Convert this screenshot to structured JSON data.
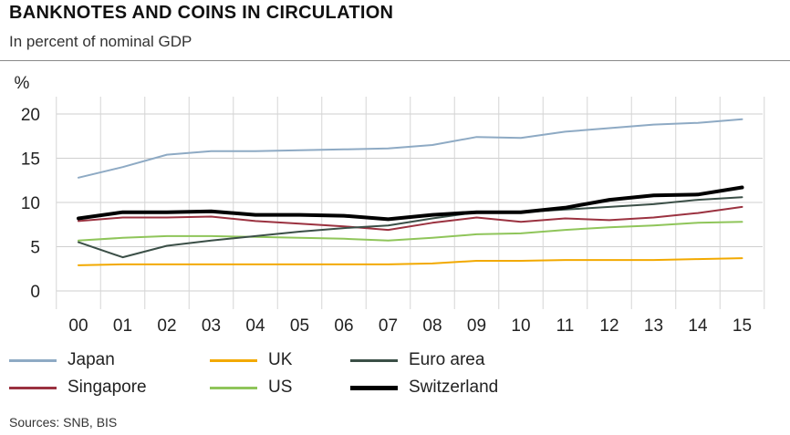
{
  "title": "BANKNOTES AND COINS IN CIRCULATION",
  "subtitle": "In percent of nominal GDP",
  "source": "Sources: SNB, BIS",
  "chart_data": {
    "type": "line",
    "ylabel": "%",
    "x": [
      "00",
      "01",
      "02",
      "03",
      "04",
      "05",
      "06",
      "07",
      "08",
      "09",
      "10",
      "11",
      "12",
      "13",
      "14",
      "15"
    ],
    "ylim": [
      0,
      20
    ],
    "yticks": [
      0,
      5,
      10,
      15,
      20
    ],
    "grid": true,
    "legend_position": "bottom",
    "series": [
      {
        "name": "Japan",
        "color": "#8eaac4",
        "width": 2,
        "values": [
          12.8,
          14.0,
          15.4,
          15.8,
          15.8,
          15.9,
          16.0,
          16.1,
          16.5,
          17.4,
          17.3,
          18.0,
          18.4,
          18.8,
          19.0,
          19.4
        ]
      },
      {
        "name": "Singapore",
        "color": "#9b3240",
        "width": 2,
        "values": [
          7.9,
          8.3,
          8.3,
          8.4,
          7.9,
          7.6,
          7.3,
          6.9,
          7.7,
          8.3,
          7.8,
          8.2,
          8.0,
          8.3,
          8.8,
          9.5
        ]
      },
      {
        "name": "UK",
        "color": "#f2a900",
        "width": 2,
        "values": [
          2.9,
          3.0,
          3.0,
          3.0,
          3.0,
          3.0,
          3.0,
          3.0,
          3.1,
          3.4,
          3.4,
          3.5,
          3.5,
          3.5,
          3.6,
          3.7
        ]
      },
      {
        "name": "US",
        "color": "#8fc55a",
        "width": 2,
        "values": [
          5.7,
          6.0,
          6.2,
          6.2,
          6.1,
          6.0,
          5.9,
          5.7,
          6.0,
          6.4,
          6.5,
          6.9,
          7.2,
          7.4,
          7.7,
          7.8
        ]
      },
      {
        "name": "Euro area",
        "color": "#3b4f47",
        "width": 2,
        "values": [
          5.5,
          3.8,
          5.1,
          5.7,
          6.2,
          6.7,
          7.1,
          7.4,
          8.2,
          8.9,
          8.9,
          9.2,
          9.5,
          9.8,
          10.3,
          10.6
        ]
      },
      {
        "name": "Switzerland",
        "color": "#000000",
        "width": 4,
        "values": [
          8.2,
          8.9,
          8.9,
          9.0,
          8.6,
          8.6,
          8.5,
          8.1,
          8.6,
          8.9,
          8.9,
          9.4,
          10.3,
          10.8,
          10.9,
          11.7
        ]
      }
    ]
  }
}
